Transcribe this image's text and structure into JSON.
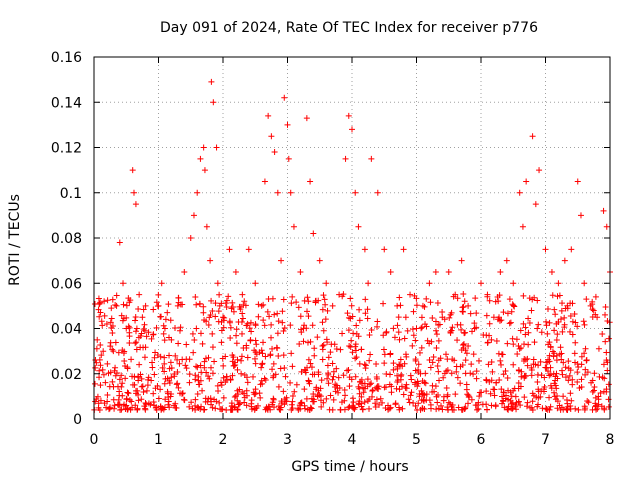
{
  "chart_data": {
    "type": "scatter",
    "title": "Day 091 of 2024, Rate Of TEC Index for receiver p776",
    "xlabel": "GPS time / hours",
    "ylabel": "ROTI / TECUs",
    "xlim": [
      0,
      8
    ],
    "ylim": [
      0,
      0.16
    ],
    "x_ticks": [
      "0",
      "1",
      "2",
      "3",
      "4",
      "5",
      "6",
      "7",
      "8"
    ],
    "y_ticks": [
      "0",
      "0.02",
      "0.04",
      "0.06",
      "0.08",
      "0.1",
      "0.12",
      "0.14",
      "0.16"
    ],
    "grid": true,
    "marker": "+",
    "color": "#ff0000",
    "series": [
      {
        "name": "ROTI",
        "x": [
          0.05,
          0.1,
          0.2,
          0.3,
          0.35,
          0.4,
          0.45,
          0.5,
          0.6,
          0.62,
          0.65,
          0.7,
          0.75,
          0.8,
          0.9,
          1.0,
          1.05,
          1.1,
          1.2,
          1.3,
          1.4,
          1.5,
          1.55,
          1.6,
          1.65,
          1.7,
          1.72,
          1.75,
          1.8,
          1.82,
          1.85,
          1.9,
          1.92,
          1.95,
          2.0,
          2.1,
          2.2,
          2.3,
          2.4,
          2.5,
          2.6,
          2.65,
          2.7,
          2.75,
          2.8,
          2.85,
          2.9,
          2.95,
          3.0,
          3.02,
          3.05,
          3.1,
          3.2,
          3.3,
          3.35,
          3.4,
          3.5,
          3.6,
          3.7,
          3.8,
          3.9,
          3.95,
          4.0,
          4.05,
          4.1,
          4.2,
          4.25,
          4.3,
          4.4,
          4.5,
          4.6,
          4.7,
          4.8,
          4.9,
          5.0,
          5.1,
          5.2,
          5.3,
          5.4,
          5.5,
          5.6,
          5.7,
          5.8,
          5.9,
          6.0,
          6.1,
          6.2,
          6.3,
          6.4,
          6.5,
          6.6,
          6.65,
          6.7,
          6.8,
          6.85,
          6.9,
          7.0,
          7.1,
          7.2,
          7.3,
          7.4,
          7.5,
          7.55,
          7.6,
          7.7,
          7.8,
          7.9,
          7.95,
          8.0
        ],
        "y": [
          0.035,
          0.015,
          0.042,
          0.03,
          0.05,
          0.078,
          0.06,
          0.04,
          0.11,
          0.1,
          0.095,
          0.055,
          0.045,
          0.05,
          0.025,
          0.05,
          0.06,
          0.04,
          0.035,
          0.05,
          0.065,
          0.08,
          0.09,
          0.1,
          0.115,
          0.12,
          0.11,
          0.085,
          0.07,
          0.149,
          0.14,
          0.12,
          0.06,
          0.05,
          0.045,
          0.075,
          0.065,
          0.055,
          0.075,
          0.06,
          0.05,
          0.105,
          0.134,
          0.125,
          0.118,
          0.1,
          0.07,
          0.142,
          0.13,
          0.115,
          0.1,
          0.085,
          0.065,
          0.133,
          0.105,
          0.082,
          0.07,
          0.06,
          0.05,
          0.055,
          0.115,
          0.134,
          0.128,
          0.1,
          0.085,
          0.075,
          0.06,
          0.115,
          0.1,
          0.075,
          0.065,
          0.05,
          0.075,
          0.055,
          0.04,
          0.05,
          0.06,
          0.065,
          0.045,
          0.065,
          0.055,
          0.07,
          0.05,
          0.04,
          0.06,
          0.055,
          0.045,
          0.065,
          0.07,
          0.06,
          0.1,
          0.085,
          0.105,
          0.125,
          0.095,
          0.11,
          0.075,
          0.065,
          0.06,
          0.07,
          0.075,
          0.105,
          0.09,
          0.06,
          0.05,
          0.045,
          0.092,
          0.085,
          0.065
        ]
      }
    ],
    "baseline_band": {
      "note": "dense cloud of low ROTI values spanning the full time range",
      "y_range": [
        0.004,
        0.045
      ]
    }
  }
}
